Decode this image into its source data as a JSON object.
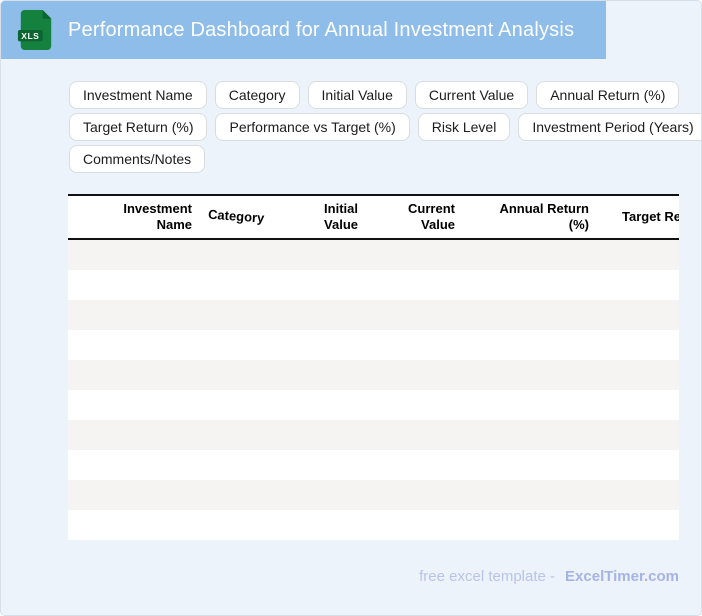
{
  "header": {
    "title": "Performance Dashboard for Annual Investment Analysis",
    "icon_label": "XLS"
  },
  "chips": {
    "rows": [
      [
        "Investment Name",
        "Category",
        "Initial Value",
        "Current Value",
        "Annual Return (%)"
      ],
      [
        "Target Return (%)",
        "Performance vs Target (%)",
        "Risk Level",
        "Investment Period (Years)"
      ],
      [
        "Comments/Notes"
      ]
    ]
  },
  "table": {
    "columns": [
      "Investment Name",
      "Category",
      "Initial Value",
      "Current Value",
      "Annual Return (%)",
      "Target Return (%)"
    ],
    "row_count": 10,
    "rows_are_empty": true
  },
  "footer": {
    "prefix": "free excel template -",
    "brand": "ExcelTimer.com"
  },
  "colors": {
    "header_bg": "#8dbde8",
    "header_text": "#ffffff",
    "page_bg": "#edf3fb",
    "page_border": "#d8dfe9",
    "chip_bg": "#ffffff",
    "chip_border": "#dadcdf",
    "chip_text": "#1c1c1c",
    "table_border": "#111111",
    "row_stripe": "#f5f4f2",
    "row_white": "#ffffff",
    "footer_text": "#b9c3ea",
    "footer_brand": "#a5b3e6",
    "icon_green": "#15813e",
    "icon_green_dark": "#0b6530"
  }
}
